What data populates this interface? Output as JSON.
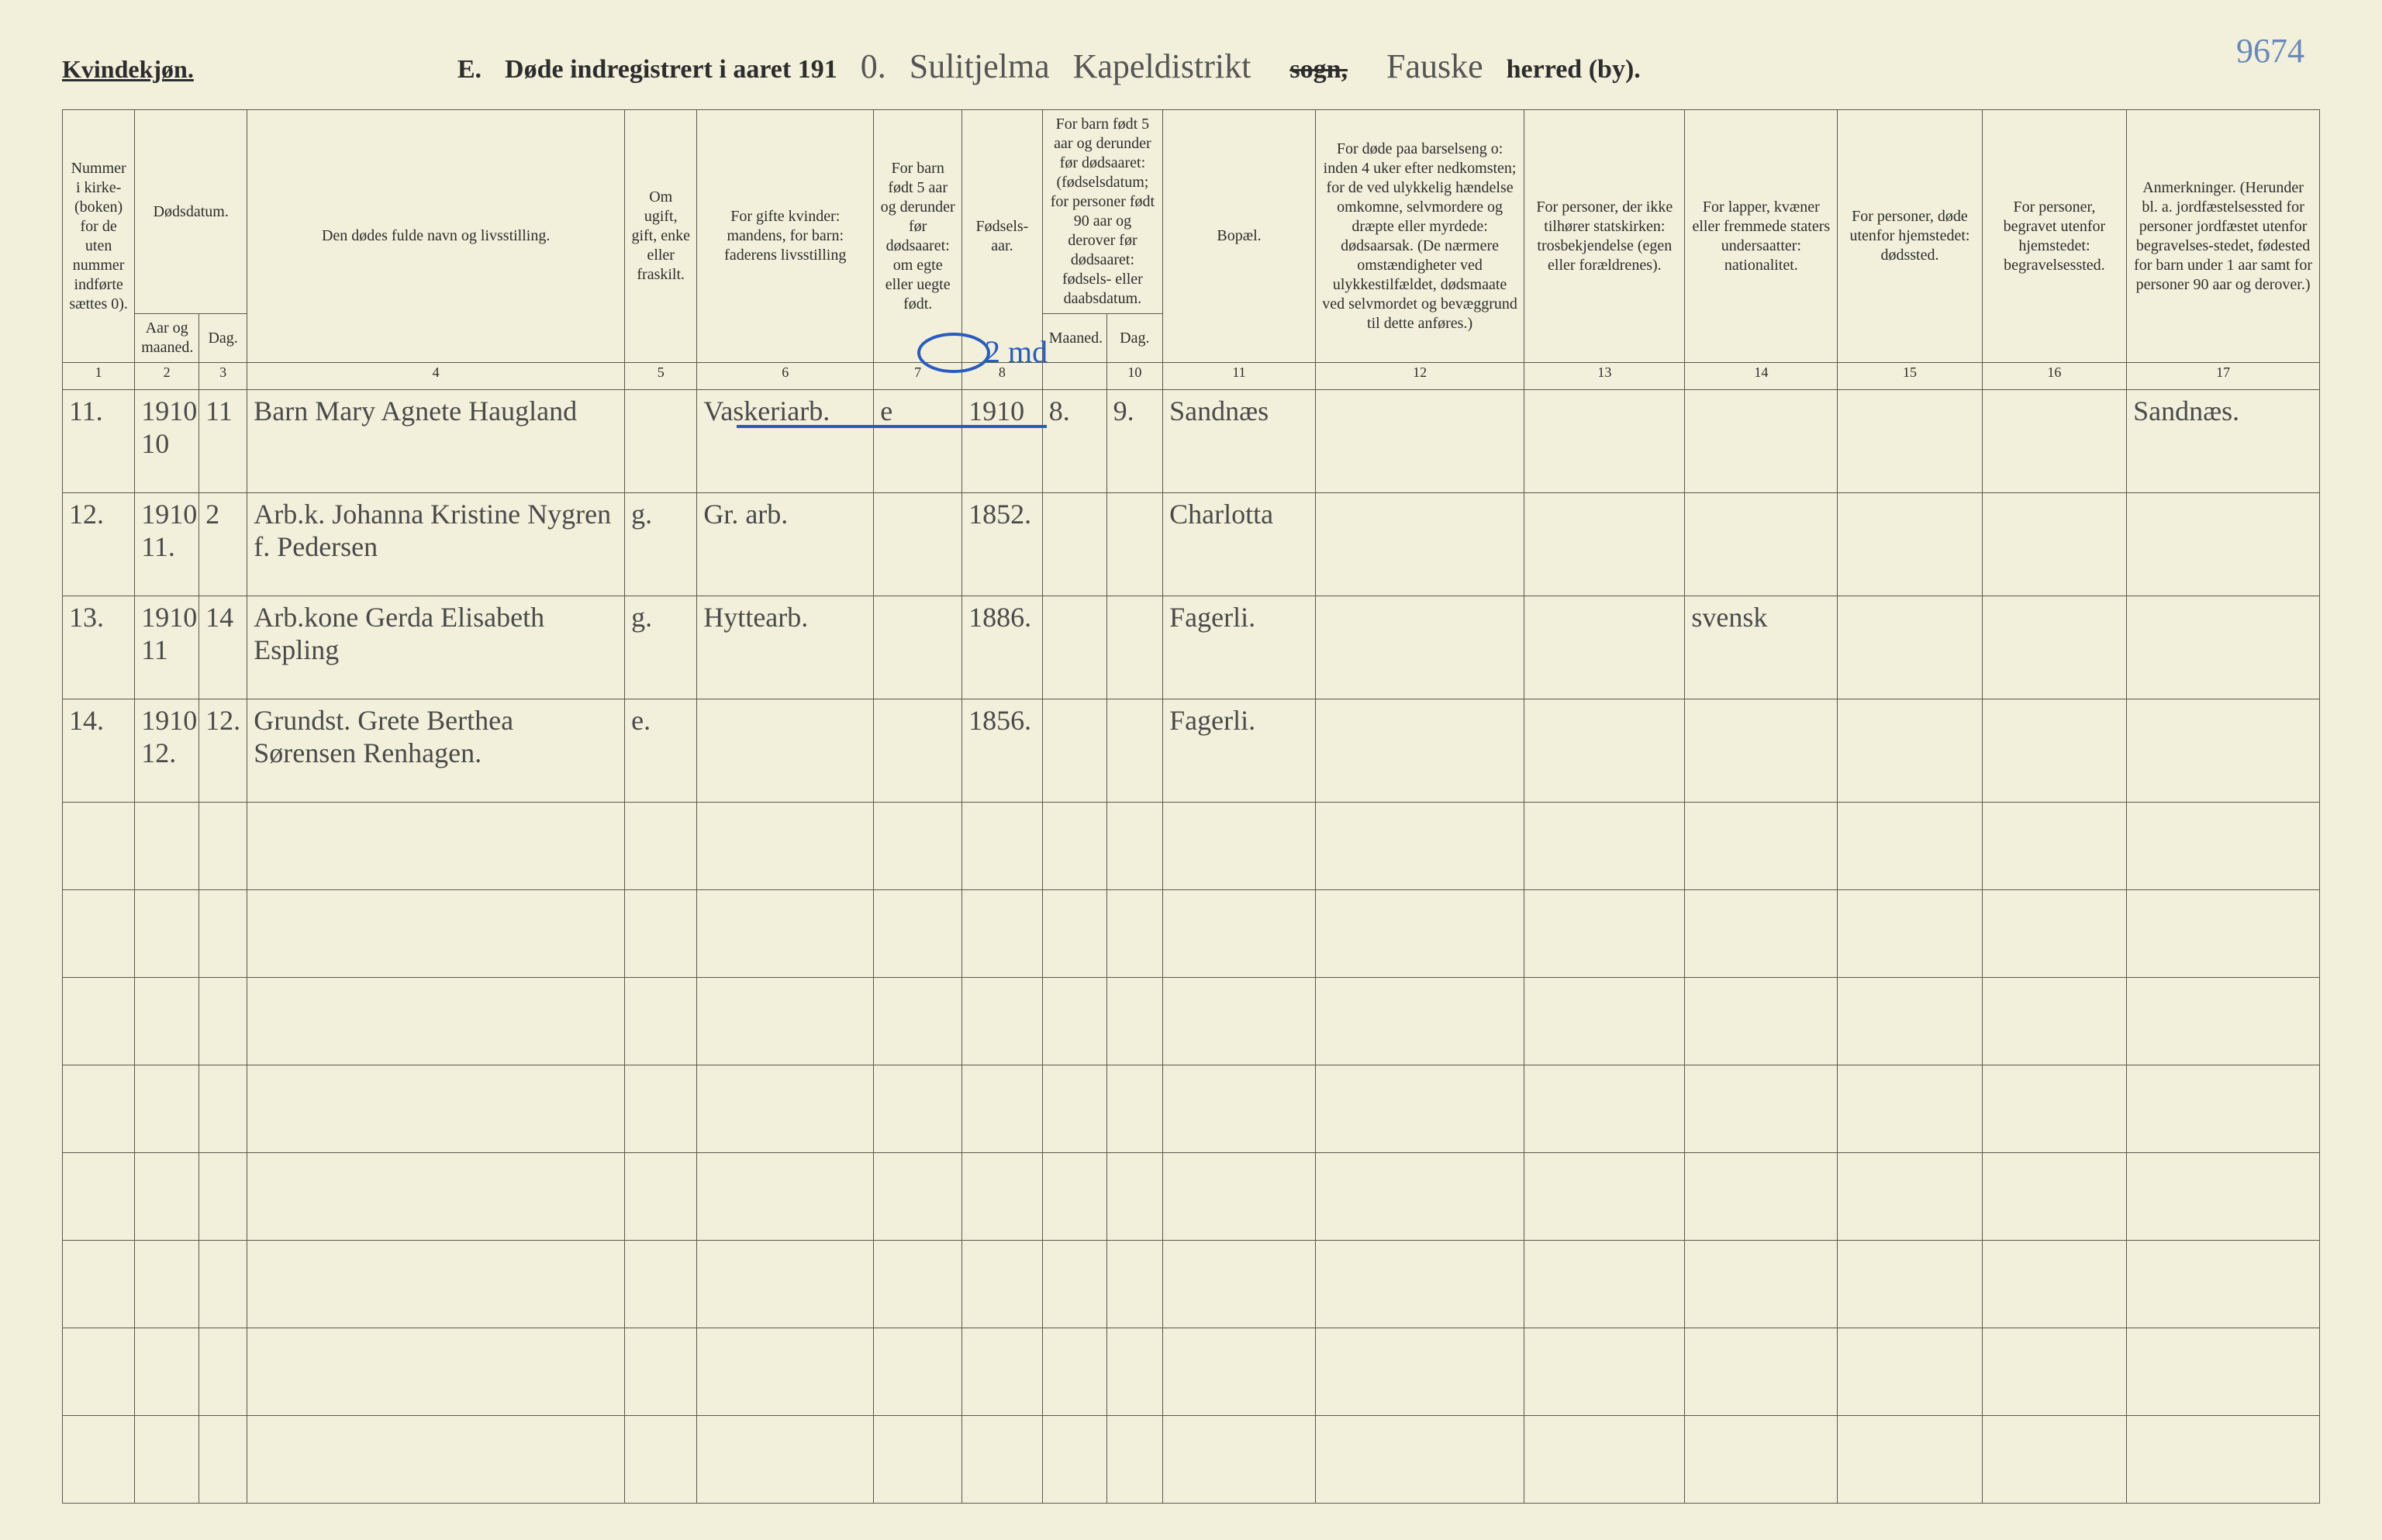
{
  "header": {
    "gender": "Kvindekjøn.",
    "letter": "E.",
    "title_prefix": "Døde indregistrert i aaret 191",
    "year_suffix": "0.",
    "parish_cursive": "Sulitjelma",
    "kapel_cursive": "Kapeldistrikt",
    "sogn_label": "sogn,",
    "herred_cursive": "Fauske",
    "herred_label": "herred (by).",
    "page_number": "9674"
  },
  "columns": {
    "c1": "Nummer i kirke-(boken) for de uten nummer indførte sættes 0).",
    "c2": "Dødsdatum.",
    "c2a": "Aar og maaned.",
    "c2b": "Dag.",
    "c4": "Den dødes fulde navn og livsstilling.",
    "c5": "Om ugift, gift, enke eller fraskilt.",
    "c6": "For gifte kvinder: mandens, for barn: faderens livsstilling",
    "c7": "For barn født 5 aar og derunder før dødsaaret: om egte eller uegte født.",
    "c8": "Fødsels-aar.",
    "c9": "For barn født 5 aar og derunder før dødsaaret: (fødselsdatum; for personer født 90 aar og derover før dødsaaret: fødsels- eller daabsdatum.",
    "c9a": "Maaned.",
    "c9b": "Dag.",
    "c11": "Bopæl.",
    "c12": "For døde paa barselseng o: inden 4 uker efter nedkomsten; for de ved ulykkelig hændelse omkomne, selvmordere og dræpte eller myrdede: dødsaarsak. (De nærmere omstændigheter ved ulykkestilfældet, dødsmaate ved selvmordet og bevæggrund til dette anføres.)",
    "c13": "For personer, der ikke tilhører statskirken: trosbekjendelse (egen eller forældrenes).",
    "c14": "For lapper, kvæner eller fremmede staters undersaatter: nationalitet.",
    "c15": "For personer, døde utenfor hjemstedet: dødssted.",
    "c16": "For personer, begravet utenfor hjemstedet: begravelsessted.",
    "c17": "Anmerkninger. (Herunder bl. a. jordfæstelsessted for personer jordfæstet utenfor begravelses-stedet, fødested for barn under 1 aar samt for personer 90 aar og derover.)"
  },
  "colnums": [
    "1",
    "2",
    "3",
    "4",
    "5",
    "6",
    "7",
    "8",
    "",
    "10",
    "11",
    "12",
    "13",
    "14",
    "15",
    "16",
    "17"
  ],
  "blue_note": "2 md",
  "rows": [
    {
      "num": "11.",
      "aar": "1910\n10",
      "dag": "11",
      "navn": "Barn Mary Agnete Haugland",
      "status": "",
      "stilling": "Vaskeriarb.",
      "egte": "e",
      "faar": "1910",
      "mnd": "8.",
      "ddag": "9.",
      "bopael": "Sandnæs",
      "c12": "",
      "c13": "",
      "c14": "",
      "c15": "",
      "c16": "",
      "anm": "Sandnæs."
    },
    {
      "num": "12.",
      "aar": "1910\n11.",
      "dag": "2",
      "navn": "Arb.k. Johanna Kristine Nygren f. Pedersen",
      "status": "g.",
      "stilling": "Gr. arb.",
      "egte": "",
      "faar": "1852.",
      "mnd": "",
      "ddag": "",
      "bopael": "Charlotta",
      "c12": "",
      "c13": "",
      "c14": "",
      "c15": "",
      "c16": "",
      "anm": ""
    },
    {
      "num": "13.",
      "aar": "1910\n11",
      "dag": "14",
      "navn": "Arb.kone Gerda Elisabeth Espling",
      "status": "g.",
      "stilling": "Hyttearb.",
      "egte": "",
      "faar": "1886.",
      "mnd": "",
      "ddag": "",
      "bopael": "Fagerli.",
      "c12": "",
      "c13": "",
      "c14": "svensk",
      "c15": "",
      "c16": "",
      "anm": ""
    },
    {
      "num": "14.",
      "aar": "1910\n12.",
      "dag": "12.",
      "navn": "Grundst. Grete Berthea Sørensen Renhagen.",
      "status": "e.",
      "stilling": "",
      "egte": "",
      "faar": "1856.",
      "mnd": "",
      "ddag": "",
      "bopael": "Fagerli.",
      "c12": "",
      "c13": "",
      "c14": "",
      "c15": "",
      "c16": "",
      "anm": ""
    }
  ],
  "blank_rows": 8,
  "colwidths": {
    "c1": 90,
    "c2a": 80,
    "c2b": 60,
    "c4": 470,
    "c5": 90,
    "c6": 220,
    "c7": 110,
    "c8": 100,
    "c9a": 80,
    "c9b": 70,
    "c11": 190,
    "c12": 260,
    "c13": 200,
    "c14": 190,
    "c15": 180,
    "c16": 180,
    "c17": 240
  },
  "colors": {
    "paper": "#f2f0db",
    "ink": "#2d2d2d",
    "rule": "#5a5a4a",
    "script": "#4a4a4a",
    "blue": "#2a5bbd"
  },
  "fontsizes": {
    "header": 34,
    "gender": 32,
    "cursive": 44,
    "th": 20,
    "td": 36,
    "colnum": 18
  }
}
